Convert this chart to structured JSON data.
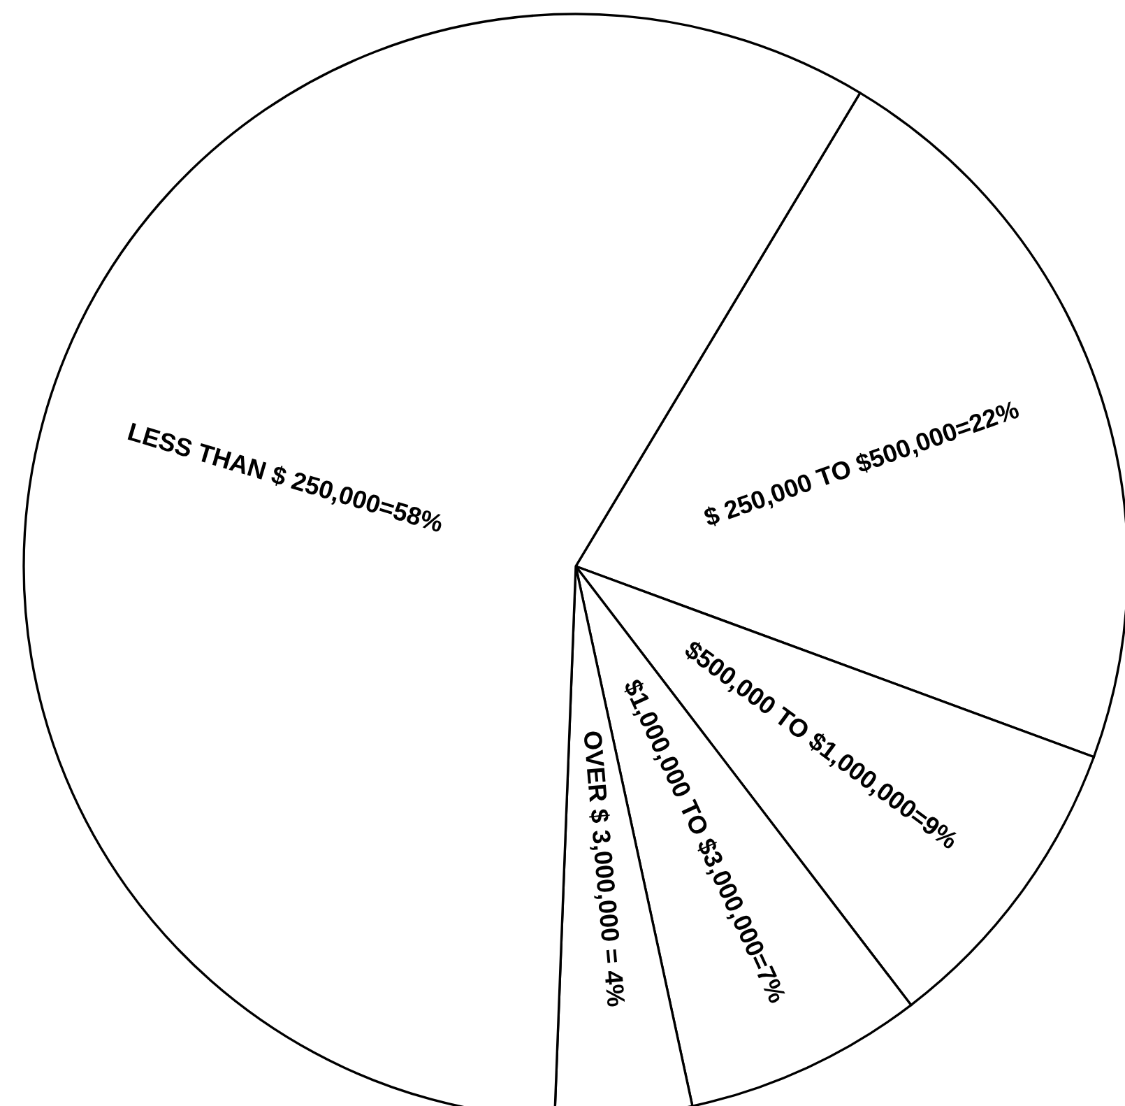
{
  "chart_data": {
    "type": "pie",
    "categories": [
      "$ 250,000 TO $500,000=22%",
      "$500,000 TO $1,000,000=9%",
      "$1,000,000 TO $3,000,000=7%",
      "OVER $ 3,000,000 = 4%",
      "LESS THAN $ 250,000=58%"
    ],
    "values": [
      22,
      9,
      7,
      4,
      58
    ],
    "colors": [
      "#ffffff",
      "#ffffff",
      "#ffffff",
      "#ffffff",
      "#ffffff"
    ]
  }
}
